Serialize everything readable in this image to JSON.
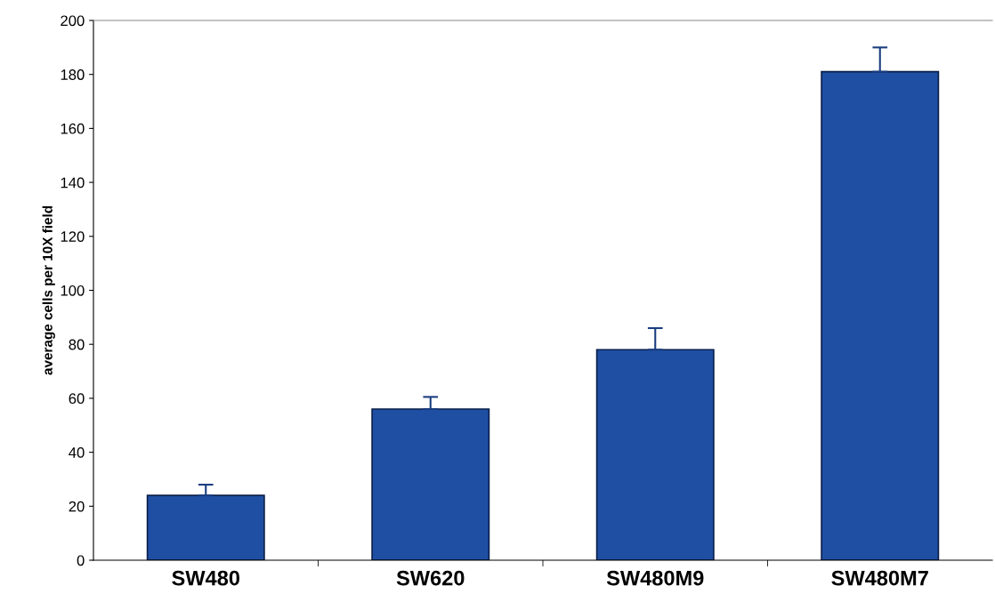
{
  "chart_data": {
    "type": "bar",
    "ylabel": "average cells per 10X field",
    "categories": [
      "SW480",
      "SW620",
      "SW480M9",
      "SW480M7"
    ],
    "values": [
      24,
      56,
      78,
      181
    ],
    "errors": [
      4,
      4.5,
      8,
      9
    ],
    "color": "#1f4fa3",
    "ylim": [
      0,
      200
    ],
    "yticks": [
      0,
      20,
      40,
      60,
      80,
      100,
      120,
      140,
      160,
      180,
      200
    ],
    "grid": false,
    "legend": false
  }
}
